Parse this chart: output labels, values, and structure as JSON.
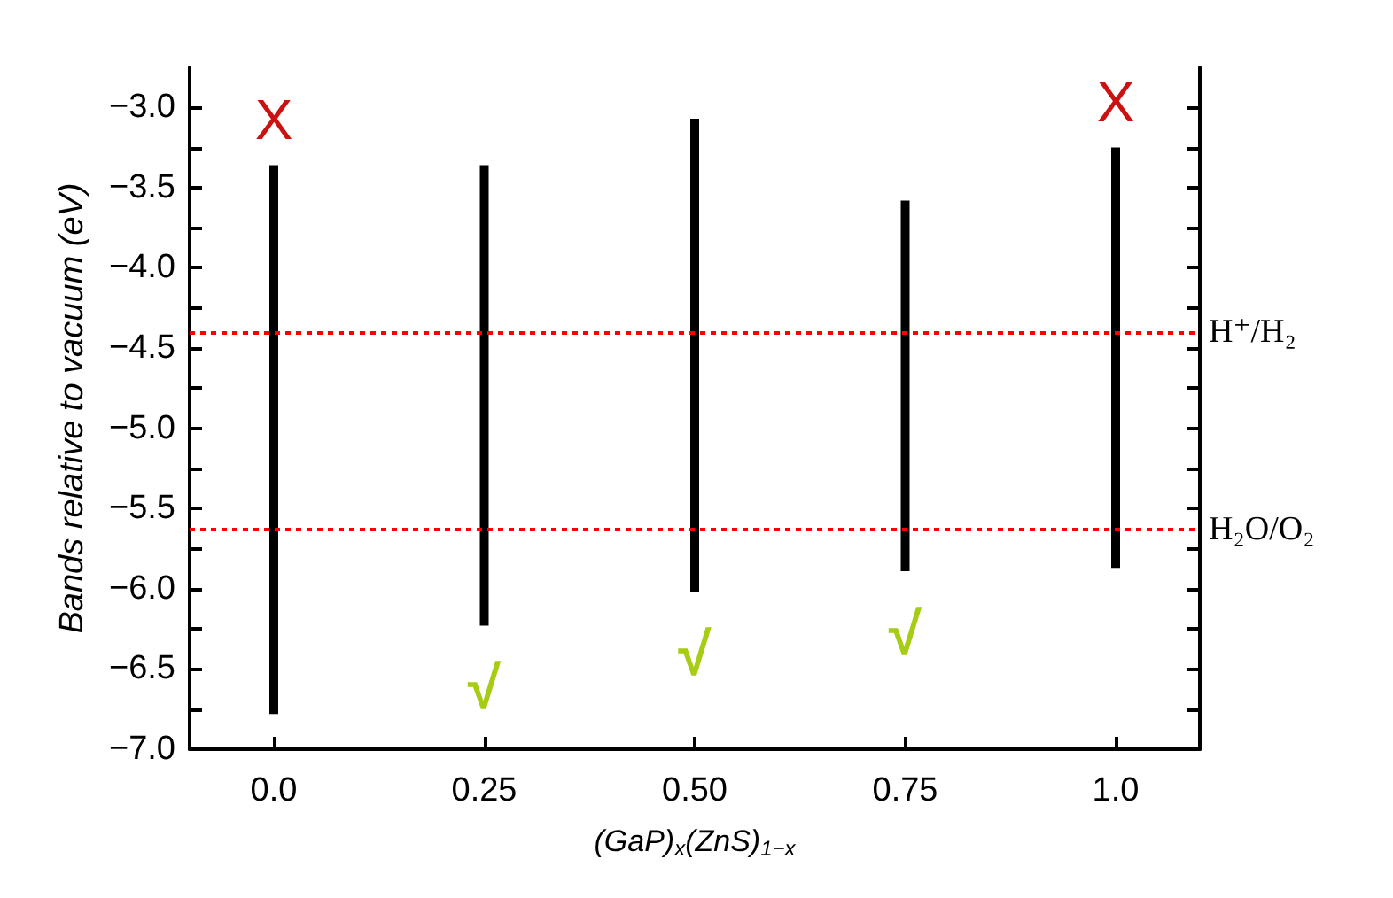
{
  "chart_data": {
    "type": "bar",
    "xlabel": "(GaP)$_{x}$(ZnS)$_{1−x}$",
    "ylabel": "Bands relative to vacuum (eV)",
    "x": [
      0,
      0.25,
      0.5,
      0.75,
      1.0
    ],
    "base": [
      -6.78,
      -6.23,
      -6.02,
      -5.89,
      -5.87
    ],
    "values": [
      3.42,
      2.87,
      2.95,
      2.31,
      2.62
    ],
    "color": "#000000",
    "xlim": [
      -0.1,
      1.1
    ],
    "xticks": [
      {
        "value": 0,
        "label": "0.0"
      },
      0.25,
      {
        "value": 0.5,
        "label": "0.50"
      },
      0.75,
      {
        "value": 1.0,
        "label": "1.0"
      }
    ],
    "ylim": [
      -7.0,
      -2.75
    ],
    "yticks": [
      {
        "value": -7.0,
        "label": "−7.0"
      },
      {
        "value": -6.75,
        "label": null
      },
      {
        "value": -6.5,
        "label": "−6.5"
      },
      {
        "value": -6.25,
        "label": null
      },
      {
        "value": -6.0,
        "label": "−6.0"
      },
      {
        "value": -5.75,
        "label": null
      },
      {
        "value": -5.5,
        "label": "−5.5"
      },
      {
        "value": -5.25,
        "label": null
      },
      {
        "value": -5.0,
        "label": "−5.0"
      },
      {
        "value": -4.75,
        "label": null
      },
      {
        "value": -4.5,
        "label": "−4.5"
      },
      {
        "value": -4.25,
        "label": null
      },
      {
        "value": -4.0,
        "label": "−4.0"
      },
      {
        "value": -3.75,
        "label": null
      },
      {
        "value": -3.5,
        "label": "−3.5"
      },
      {
        "value": -3.25,
        "label": null
      },
      {
        "value": -3.0,
        "label": "−3.0"
      }
    ],
    "ref_lines": [
      {
        "axis": "y",
        "value": -4.4,
        "label": "H⁺/H₂",
        "color": "#ff0000",
        "line_style": "dotted"
      },
      {
        "axis": "y",
        "value": -5.63,
        "label": "H₂O/O₂",
        "color": "#ff0000",
        "line_style": "dotted"
      }
    ],
    "annotations": [
      {
        "text": "X",
        "x": 0,
        "y": -3.36
      },
      {
        "text": "√",
        "x": 0.25,
        "y": -6.23
      },
      {
        "text": "√",
        "x": 0.5,
        "y": -6.02
      },
      {
        "text": "√",
        "x": 0.75,
        "y": -5.89
      },
      {
        "text": "X",
        "x": 1.0,
        "y": -3.25
      }
    ],
    "grid": false
  }
}
